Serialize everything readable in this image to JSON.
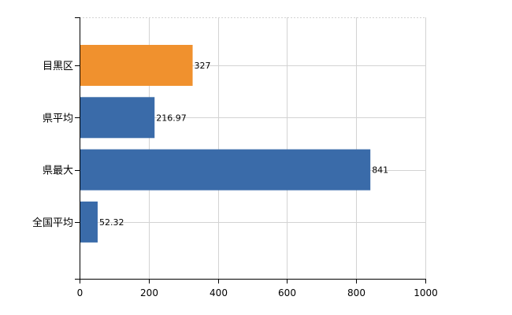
{
  "chart_data": {
    "type": "bar",
    "orientation": "horizontal",
    "categories": [
      "目黒区",
      "県平均",
      "県最大",
      "全国平均"
    ],
    "values": [
      327,
      216.97,
      841,
      52.32
    ],
    "data_labels": [
      "327",
      "216.97",
      "841",
      "52.32"
    ],
    "highlight_index": 0,
    "xlim": [
      0,
      1000
    ],
    "x_ticks": [
      0,
      200,
      400,
      600,
      800,
      1000
    ],
    "x_tick_labels": [
      "0",
      "200",
      "400",
      "600",
      "800",
      "1000"
    ],
    "grid": true,
    "legend": false,
    "colors": {
      "highlight": "#F0912E",
      "default": "#3A6BA9",
      "grid": "#D3D3D3",
      "axis": "#000000"
    }
  }
}
